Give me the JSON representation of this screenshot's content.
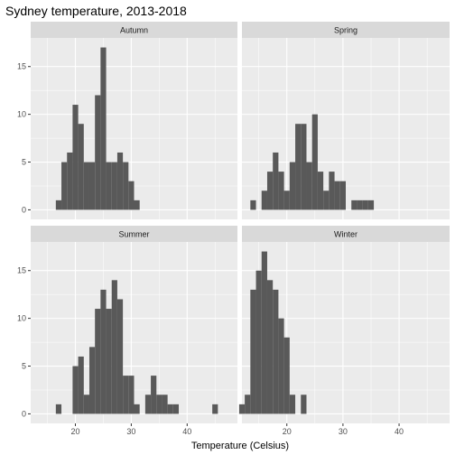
{
  "chart_data": {
    "type": "bar",
    "title": "Sydney temperature, 2013-2018",
    "xlabel": "Temperature (Celsius)",
    "ylabel": "",
    "xlim": [
      12,
      49
    ],
    "ylim": [
      -1,
      18
    ],
    "x_ticks": [
      20,
      30,
      40
    ],
    "y_ticks": [
      0,
      5,
      10,
      15
    ],
    "bin_width": 1,
    "grid": true,
    "colors": {
      "panel_bg": "#ebebeb",
      "strip_bg": "#d9d9d9",
      "grid": "#ffffff",
      "bar": "#595959"
    },
    "panels": [
      {
        "name": "Autumn",
        "bins": [
          {
            "x": 17,
            "count": 1
          },
          {
            "x": 18,
            "count": 5
          },
          {
            "x": 19,
            "count": 6
          },
          {
            "x": 20,
            "count": 11
          },
          {
            "x": 21,
            "count": 9
          },
          {
            "x": 22,
            "count": 5
          },
          {
            "x": 23,
            "count": 5
          },
          {
            "x": 24,
            "count": 12
          },
          {
            "x": 25,
            "count": 17
          },
          {
            "x": 26,
            "count": 5
          },
          {
            "x": 27,
            "count": 5
          },
          {
            "x": 28,
            "count": 6
          },
          {
            "x": 29,
            "count": 5
          },
          {
            "x": 30,
            "count": 3
          },
          {
            "x": 31,
            "count": 1
          }
        ]
      },
      {
        "name": "Spring",
        "bins": [
          {
            "x": 14,
            "count": 1
          },
          {
            "x": 16,
            "count": 2
          },
          {
            "x": 17,
            "count": 4
          },
          {
            "x": 18,
            "count": 6
          },
          {
            "x": 19,
            "count": 4
          },
          {
            "x": 20,
            "count": 2
          },
          {
            "x": 21,
            "count": 5
          },
          {
            "x": 22,
            "count": 9
          },
          {
            "x": 23,
            "count": 9
          },
          {
            "x": 24,
            "count": 5
          },
          {
            "x": 25,
            "count": 10
          },
          {
            "x": 26,
            "count": 4
          },
          {
            "x": 27,
            "count": 2
          },
          {
            "x": 28,
            "count": 4
          },
          {
            "x": 29,
            "count": 3
          },
          {
            "x": 30,
            "count": 3
          },
          {
            "x": 32,
            "count": 1
          },
          {
            "x": 33,
            "count": 1
          },
          {
            "x": 34,
            "count": 1
          },
          {
            "x": 35,
            "count": 1
          }
        ]
      },
      {
        "name": "Summer",
        "bins": [
          {
            "x": 17,
            "count": 1
          },
          {
            "x": 20,
            "count": 5
          },
          {
            "x": 21,
            "count": 6
          },
          {
            "x": 22,
            "count": 2
          },
          {
            "x": 23,
            "count": 7
          },
          {
            "x": 24,
            "count": 11
          },
          {
            "x": 25,
            "count": 13
          },
          {
            "x": 26,
            "count": 11
          },
          {
            "x": 27,
            "count": 14
          },
          {
            "x": 28,
            "count": 12
          },
          {
            "x": 29,
            "count": 4
          },
          {
            "x": 30,
            "count": 4
          },
          {
            "x": 31,
            "count": 1
          },
          {
            "x": 33,
            "count": 2
          },
          {
            "x": 34,
            "count": 4
          },
          {
            "x": 35,
            "count": 2
          },
          {
            "x": 36,
            "count": 2
          },
          {
            "x": 37,
            "count": 1
          },
          {
            "x": 38,
            "count": 1
          },
          {
            "x": 45,
            "count": 1
          }
        ]
      },
      {
        "name": "Winter",
        "bins": [
          {
            "x": 12,
            "count": 1
          },
          {
            "x": 13,
            "count": 2
          },
          {
            "x": 14,
            "count": 13
          },
          {
            "x": 15,
            "count": 15
          },
          {
            "x": 16,
            "count": 17
          },
          {
            "x": 17,
            "count": 14
          },
          {
            "x": 18,
            "count": 13
          },
          {
            "x": 19,
            "count": 10
          },
          {
            "x": 20,
            "count": 8
          },
          {
            "x": 21,
            "count": 2
          },
          {
            "x": 23,
            "count": 2
          }
        ]
      }
    ]
  }
}
